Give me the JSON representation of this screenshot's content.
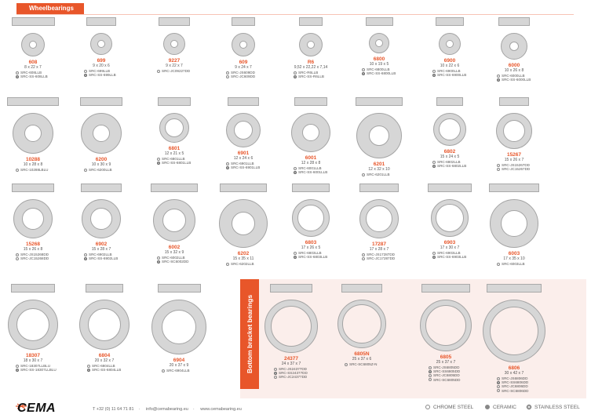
{
  "section_title": "Wheelbearings",
  "bb_title": "Bottom bracket bearings",
  "items": [
    {
      "code": "608",
      "dims": "8 x 22 x 7",
      "refs": [
        {
          "t": "c",
          "txt": "SRC-608LLB"
        },
        {
          "t": "s",
          "txt": "SRC-SS-608LLB"
        }
      ]
    },
    {
      "code": "699",
      "dims": "9 x 20 x 6",
      "refs": [
        {
          "t": "c",
          "txt": "SRC-699LLB"
        },
        {
          "t": "s",
          "txt": "SRC-SS-699LLB"
        }
      ]
    },
    {
      "code": "9227",
      "dims": "9 x 22 x 7",
      "refs": [
        {
          "t": "c",
          "txt": "SRC-JC09227DD"
        }
      ]
    },
    {
      "code": "609",
      "dims": "9 x 24 x 7",
      "refs": [
        {
          "t": "c",
          "txt": "SRC-JS609DD"
        },
        {
          "t": "c",
          "txt": "SRC-JC609DD"
        }
      ]
    },
    {
      "code": "R6",
      "dims": "9,52 x 22,22 x 7,14",
      "refs": [
        {
          "t": "c",
          "txt": "SRC-R6LLB"
        },
        {
          "t": "s",
          "txt": "SRC-SS-R6LLB"
        }
      ]
    },
    {
      "code": "6800",
      "dims": "10 x 19 x 5",
      "refs": [
        {
          "t": "c",
          "txt": "SRC-6800LLB"
        },
        {
          "t": "s",
          "txt": "SRC-SS-6800LLB"
        }
      ]
    },
    {
      "code": "6900",
      "dims": "10 x 22 x 6",
      "refs": [
        {
          "t": "c",
          "txt": "SRC-6900LLB"
        },
        {
          "t": "s",
          "txt": "SRC-SS-6900LLB"
        }
      ]
    },
    {
      "code": "6000",
      "dims": "10 x 26 x 8",
      "refs": [
        {
          "t": "c",
          "txt": "SRC-6000LLB"
        },
        {
          "t": "s",
          "txt": "SRC-SS-6000LLB"
        }
      ]
    },
    {
      "code": "10288",
      "dims": "10 x 28 x 8",
      "refs": [
        {
          "t": "c",
          "txt": "SRC-10288LBLU"
        }
      ]
    },
    {
      "code": "6200",
      "dims": "10 x 30 x 9",
      "refs": [
        {
          "t": "c",
          "txt": "SRC-6200LLB"
        }
      ]
    },
    {
      "code": "6801",
      "dims": "12 x 21 x 5",
      "refs": [
        {
          "t": "c",
          "txt": "SRC-6801LLB"
        },
        {
          "t": "s",
          "txt": "SRC-SS-6801LLB"
        }
      ]
    },
    {
      "code": "6901",
      "dims": "12 x 24 x 6",
      "refs": [
        {
          "t": "c",
          "txt": "SRC-6901LLB"
        },
        {
          "t": "s",
          "txt": "SRC-SS-6901LLB"
        }
      ]
    },
    {
      "code": "6001",
      "dims": "12 x 28 x 8",
      "refs": [
        {
          "t": "c",
          "txt": "SRC-6001LLB"
        },
        {
          "t": "s",
          "txt": "SRC-SS-6001LLB"
        }
      ]
    },
    {
      "code": "6201",
      "dims": "12 x 32 x 10",
      "refs": [
        {
          "t": "c",
          "txt": "SRC-6201LLB"
        }
      ]
    },
    {
      "code": "6802",
      "dims": "15 x 24 x 5",
      "refs": [
        {
          "t": "c",
          "txt": "SRC-6802LLB"
        },
        {
          "t": "s",
          "txt": "SRC-SS-6802LLB"
        }
      ]
    },
    {
      "code": "15267",
      "dims": "15 x 26 x 7",
      "refs": [
        {
          "t": "c",
          "txt": "SRC-JS15267DD"
        },
        {
          "t": "c",
          "txt": "SRC-JC15267DD"
        }
      ]
    },
    {
      "code": "15268",
      "dims": "15 x 26 x 8",
      "refs": [
        {
          "t": "c",
          "txt": "SRC-JS15268DD"
        },
        {
          "t": "c",
          "txt": "SRC-JC15268DD"
        }
      ]
    },
    {
      "code": "6902",
      "dims": "15 x 28 x 7",
      "refs": [
        {
          "t": "c",
          "txt": "SRC-6902LLB"
        },
        {
          "t": "s",
          "txt": "SRC-SS-6902LLB"
        }
      ]
    },
    {
      "code": "6002",
      "dims": "15 x 32 x 9",
      "refs": [
        {
          "t": "c",
          "txt": "SRC-6002LLB"
        },
        {
          "t": "s",
          "txt": "SRC-SC6002DD"
        }
      ]
    },
    {
      "code": "6202",
      "dims": "15 x 35 x 11",
      "refs": [
        {
          "t": "c",
          "txt": "SRC-6202LLB"
        }
      ]
    },
    {
      "code": "6803",
      "dims": "17 x 26 x 5",
      "refs": [
        {
          "t": "c",
          "txt": "SRC-6803LLB"
        },
        {
          "t": "s",
          "txt": "SRC-SS-6803LLB"
        }
      ]
    },
    {
      "code": "17287",
      "dims": "17 x 28 x 7",
      "refs": [
        {
          "t": "c",
          "txt": "SRC-JS17287DD"
        },
        {
          "t": "c",
          "txt": "SRC-JC17287DD"
        }
      ]
    },
    {
      "code": "6903",
      "dims": "17 x 30 x 7",
      "refs": [
        {
          "t": "c",
          "txt": "SRC-6903LLB"
        },
        {
          "t": "s",
          "txt": "SRC-SS-6903LLB"
        }
      ]
    },
    {
      "code": "6003",
      "dims": "17 x 35 x 10",
      "refs": [
        {
          "t": "c",
          "txt": "SRC-6003LLB"
        }
      ]
    },
    {
      "code": "18307",
      "dims": "18 x 30 x 7",
      "refs": [
        {
          "t": "c",
          "txt": "SRC-18307LLBLU"
        },
        {
          "t": "s",
          "txt": "SRC-SS-18307LLBLU"
        }
      ]
    },
    {
      "code": "6804",
      "dims": "20 x 32 x 7",
      "refs": [
        {
          "t": "c",
          "txt": "SRC-6804LLB"
        },
        {
          "t": "s",
          "txt": "SRC-SS-6804LLB"
        }
      ]
    },
    {
      "code": "6904",
      "dims": "20 x 37 x 9",
      "refs": [
        {
          "t": "c",
          "txt": "SRC-6904LLB"
        }
      ]
    },
    {
      "code": "24377",
      "dims": "24 x 37 x 7",
      "refs": [
        {
          "t": "c",
          "txt": "SRC-JS24377DD"
        },
        {
          "t": "s",
          "txt": "SRC-SS24377DD"
        },
        {
          "t": "c",
          "txt": "SRC-JC24377DD"
        }
      ]
    },
    {
      "code": "6805N",
      "dims": "25 x 37 x 6",
      "refs": [
        {
          "t": "c",
          "txt": "SRC-SC6805Z-N"
        }
      ]
    },
    {
      "code": "6805",
      "dims": "25 x 37 x 7",
      "refs": [
        {
          "t": "c",
          "txt": "SRC-JS6805DD"
        },
        {
          "t": "s",
          "txt": "SRC-SS6805DD"
        },
        {
          "t": "c",
          "txt": "SRC-JC6805DD"
        },
        {
          "t": "c",
          "txt": "SRC-SC6805DD"
        }
      ]
    },
    {
      "code": "6806",
      "dims": "30 x 42 x 7",
      "refs": [
        {
          "t": "c",
          "txt": "SRC-JS6806DD"
        },
        {
          "t": "s",
          "txt": "SRC-SS6806DD"
        },
        {
          "t": "c",
          "txt": "SRC-JC6806DD"
        },
        {
          "t": "c",
          "txt": "SRC-SC6806DD"
        }
      ]
    }
  ],
  "footer": {
    "logo": "CEMA",
    "phone": "T +32 (0) 11 64 71 81",
    "email": "info@cemabearing.eu",
    "web": "www.cemabearing.eu",
    "sep": "·",
    "legend": [
      "CHROME STEEL",
      "CERAMIC",
      "STAINLESS STEEL"
    ]
  },
  "colors": {
    "accent": "#e8562a",
    "ring": "#d6d6d6",
    "panel": "#fbeeeb"
  }
}
